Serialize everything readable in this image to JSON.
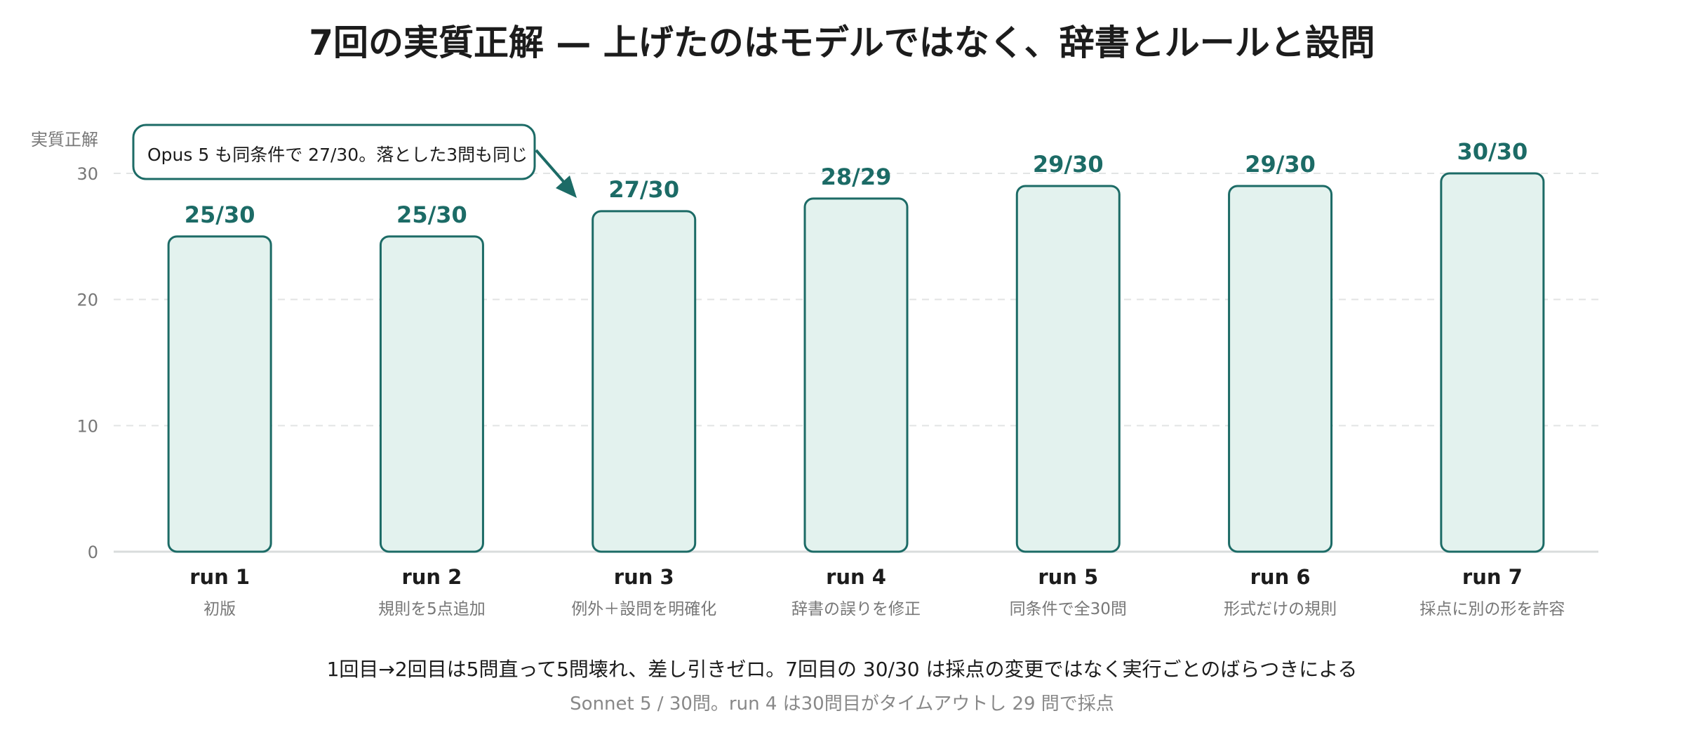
{
  "chart_data": {
    "type": "bar",
    "title": "7回の実質正解 — 上げたのはモデルではなく、辞書とルールと設問",
    "ylabel": "実質正解",
    "xlabel": "",
    "ylim": [
      0,
      30
    ],
    "yticks": [
      0,
      10,
      20,
      30
    ],
    "grid": true,
    "categories": [
      "run 1",
      "run 2",
      "run 3",
      "run 4",
      "run 5",
      "run 6",
      "run 7"
    ],
    "subcategories": [
      "初版",
      "規則を5点追加",
      "例外＋設問を明確化",
      "辞書の誤りを修正",
      "同条件で全30問",
      "形式だけの規則",
      "採点に別の形を許容"
    ],
    "values": [
      25,
      25,
      27,
      28,
      29,
      29,
      30
    ],
    "data_labels": [
      "25/30",
      "25/30",
      "27/30",
      "28/29",
      "29/30",
      "29/30",
      "30/30"
    ],
    "annotation": {
      "text": "Opus 5 も同条件で 27/30。落とした3問も同じ",
      "target_category": "run 3"
    },
    "footnote": "1回目→2回目は5問直って5問壊れ、差し引きゼロ。7回目の 30/30 は採点の変更ではなく実行ごとのばらつきによる",
    "source_note": "Sonnet 5 / 30問。run 4 は30問目がタイムアウトし 29 問で採点",
    "colors": {
      "bar_fill": "#e3f2ee",
      "bar_stroke": "#1c6b66",
      "value_label": "#1c6b66",
      "grid": "#e2e4e4"
    }
  }
}
